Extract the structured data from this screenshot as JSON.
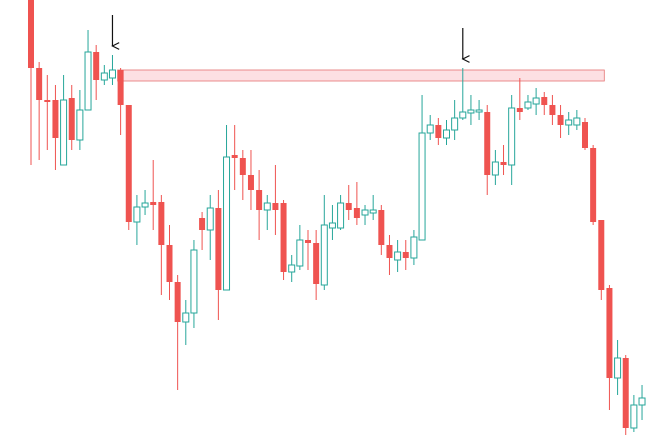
{
  "chart_data": {
    "type": "candlestick",
    "open": [
      436,
      368,
      336,
      336,
      271,
      338,
      296,
      326,
      384,
      356,
      358,
      366,
      331,
      214,
      229,
      234,
      234,
      191,
      154,
      114,
      123,
      218,
      206,
      228,
      146,
      281,
      278,
      261,
      246,
      226,
      233,
      233,
      164,
      170,
      196,
      193,
      151,
      208,
      208,
      233,
      228,
      221,
      223,
      226,
      191,
      176,
      184,
      178,
      196,
      303,
      311,
      298,
      306,
      318,
      323,
      324,
      324,
      261,
      274,
      271,
      328,
      328,
      332,
      339,
      331,
      321,
      311,
      311,
      314,
      288,
      216,
      148,
      58,
      78,
      8,
      31
    ],
    "high": [
      436,
      374,
      361,
      351,
      361,
      351,
      346,
      406,
      391,
      371,
      381,
      368,
      331,
      241,
      246,
      276,
      241,
      211,
      161,
      136,
      196,
      224,
      241,
      246,
      311,
      311,
      286,
      286,
      266,
      241,
      271,
      236,
      181,
      211,
      206,
      206,
      241,
      231,
      241,
      251,
      254,
      231,
      241,
      231,
      201,
      196,
      196,
      206,
      341,
      321,
      318,
      316,
      336,
      368,
      341,
      336,
      331,
      286,
      291,
      341,
      358,
      341,
      348,
      344,
      341,
      331,
      324,
      326,
      318,
      291,
      216,
      151,
      96,
      81,
      41,
      51
    ],
    "low": [
      271,
      276,
      286,
      266,
      271,
      286,
      286,
      326,
      336,
      351,
      351,
      301,
      206,
      191,
      221,
      206,
      141,
      136,
      46,
      91,
      108,
      186,
      176,
      116,
      146,
      246,
      236,
      226,
      196,
      206,
      201,
      156,
      154,
      166,
      166,
      136,
      146,
      196,
      206,
      216,
      211,
      211,
      216,
      181,
      161,
      164,
      166,
      171,
      196,
      296,
      291,
      291,
      296,
      316,
      311,
      316,
      241,
      251,
      261,
      251,
      316,
      326,
      321,
      321,
      311,
      298,
      301,
      306,
      286,
      211,
      136,
      26,
      41,
      1,
      4,
      16
    ],
    "close": [
      368,
      336,
      334,
      298,
      336,
      296,
      326,
      384,
      356,
      363,
      366,
      331,
      214,
      229,
      233,
      231,
      191,
      154,
      114,
      123,
      186,
      206,
      228,
      146,
      279,
      278,
      261,
      246,
      226,
      233,
      226,
      164,
      171,
      196,
      193,
      152,
      211,
      213,
      233,
      226,
      218,
      226,
      226,
      191,
      178,
      184,
      178,
      199,
      303,
      311,
      298,
      306,
      318,
      324,
      326,
      326,
      261,
      274,
      271,
      328,
      324,
      334,
      338,
      331,
      321,
      311,
      316,
      318,
      288,
      214,
      146,
      58,
      78,
      8,
      31,
      38
    ],
    "up_color": "#26a69a",
    "down_color": "#ef5350",
    "ylim": [
      0,
      436
    ],
    "zone": {
      "low": 355,
      "high": 366,
      "start": 11,
      "end": 70,
      "color": "#fde0e3",
      "border": "#e57373"
    },
    "arrows": [
      10,
      53
    ]
  }
}
